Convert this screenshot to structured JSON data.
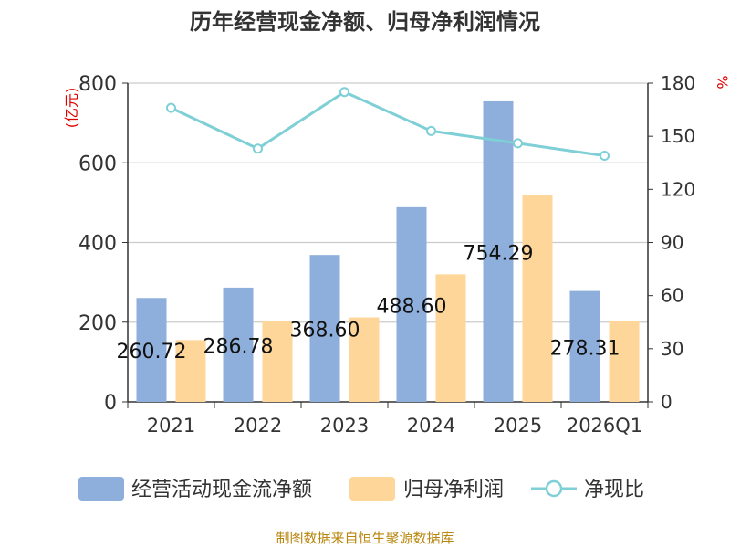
{
  "chart_data": {
    "type": "bar",
    "title": "历年经营现金净额、归母净利润情况",
    "left_unit": "(亿元)",
    "right_unit": "%",
    "categories": [
      "2021",
      "2022",
      "2023",
      "2024",
      "2025",
      "2026Q1"
    ],
    "y_left": {
      "min": 0,
      "max": 800,
      "ticks": [
        "0",
        "200",
        "400",
        "600",
        "800"
      ]
    },
    "y_right": {
      "min": 0,
      "max": 180,
      "ticks": [
        "0",
        "30",
        "60",
        "90",
        "120",
        "150",
        "180"
      ]
    },
    "series": [
      {
        "name": "经营活动现金流净额",
        "type": "bar",
        "axis": "left",
        "color": "#8eaedb",
        "values": [
          260.72,
          286.78,
          368.6,
          488.6,
          754.29,
          278.31
        ],
        "labels": [
          "260.72",
          "286.78",
          "368.60",
          "488.60",
          "754.29",
          "278.31"
        ]
      },
      {
        "name": "归母净利润",
        "type": "bar",
        "axis": "left",
        "color": "#ffd699",
        "values": [
          155,
          202,
          212,
          320,
          518,
          202
        ]
      },
      {
        "name": "净现比",
        "type": "line",
        "axis": "right",
        "color": "#7ecfd6",
        "values": [
          166,
          143,
          175,
          153,
          146,
          139
        ]
      }
    ],
    "grid": true,
    "legend_position": "bottom"
  },
  "source_text": "制图数据来自恒生聚源数据库"
}
